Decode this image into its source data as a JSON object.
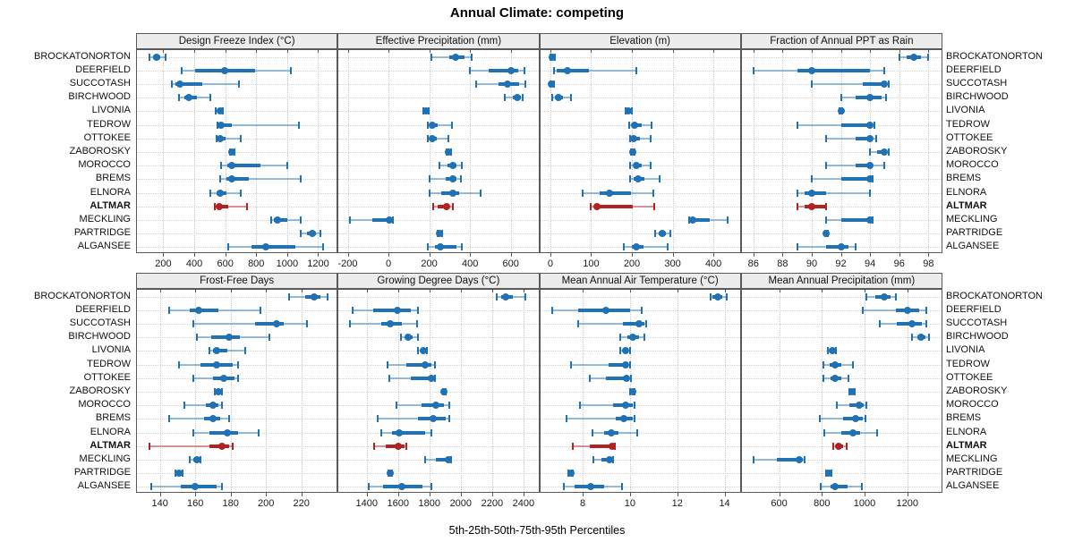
{
  "title": "Annual Climate: competing",
  "caption": "5th-25th-50th-75th-95th Percentiles",
  "percentile_labels": [
    "5th",
    "25th",
    "50th",
    "75th",
    "95th"
  ],
  "locations": [
    "BROCKATONORTON",
    "DEERFIELD",
    "SUCCOTASH",
    "BIRCHWOOD",
    "LIVONIA",
    "TEDROW",
    "OTTOKEE",
    "ZABOROSKY",
    "MOROCCO",
    "BREMS",
    "ELNORA",
    "ALTMAR",
    "MECKLING",
    "PARTRIDGE",
    "ALGANSEE"
  ],
  "highlight_location": "ALTMAR",
  "colors": {
    "series": "#2171B5",
    "series_light": "rgba(33,113,181,0.45)",
    "highlight": "#B22222",
    "highlight_light": "rgba(178,34,34,0.45)",
    "strip_bg": "#ececec",
    "grid": "#c9c9c9",
    "border": "#5a5a5a"
  },
  "chart_data": [
    {
      "type": "interval-dotplot",
      "title": "Design Freeze Index (°C)",
      "xlim": [
        30,
        1320
      ],
      "ticks": [
        200,
        400,
        600,
        800,
        1000,
        1200
      ],
      "values": {
        "BROCKATONORTON": [
          110,
          135,
          155,
          180,
          215
        ],
        "DEERFIELD": [
          320,
          405,
          595,
          790,
          1025
        ],
        "SUCCOTASH": [
          255,
          280,
          305,
          450,
          690
        ],
        "BIRCHWOOD": [
          300,
          335,
          365,
          420,
          505
        ],
        "LIVONIA": [
          540,
          555,
          565,
          575,
          585
        ],
        "TEDROW": [
          550,
          560,
          572,
          640,
          1075
        ],
        "OTTOKEE": [
          545,
          555,
          567,
          605,
          700
        ],
        "ZABOROSKY": [
          630,
          638,
          645,
          652,
          660
        ],
        "MOROCCO": [
          575,
          615,
          645,
          830,
          1000
        ],
        "BREMS": [
          570,
          610,
          640,
          750,
          1090
        ],
        "ELNORA": [
          505,
          545,
          570,
          605,
          700
        ],
        "ALTMAR": [
          535,
          545,
          560,
          620,
          740
        ],
        "MECKLING": [
          895,
          915,
          935,
          1000,
          1085
        ],
        "PARTRIDGE": [
          1090,
          1130,
          1160,
          1185,
          1215
        ],
        "ALGANSEE": [
          620,
          770,
          860,
          1050,
          1230
        ]
      }
    },
    {
      "type": "interval-dotplot",
      "title": "Effective Precipitation (mm)",
      "xlim": [
        -245,
        735
      ],
      "ticks": [
        -200,
        0,
        200,
        400,
        600
      ],
      "values": {
        "BROCKATONORTON": [
          210,
          300,
          330,
          375,
          410
        ],
        "DEERFIELD": [
          400,
          490,
          600,
          635,
          665
        ],
        "SUCCOTASH": [
          430,
          540,
          585,
          640,
          670
        ],
        "BIRCHWOOD": [
          570,
          610,
          633,
          648,
          660
        ],
        "LIVONIA": [
          170,
          178,
          184,
          190,
          196
        ],
        "TEDROW": [
          195,
          205,
          215,
          240,
          310
        ],
        "OTTOKEE": [
          195,
          205,
          215,
          235,
          295
        ],
        "ZABOROSKY": [
          285,
          290,
          295,
          300,
          305
        ],
        "MOROCCO": [
          250,
          290,
          315,
          335,
          360
        ],
        "BREMS": [
          200,
          280,
          315,
          332,
          355
        ],
        "ELNORA": [
          200,
          260,
          315,
          345,
          450
        ],
        "ALTMAR": [
          220,
          240,
          283,
          300,
          315
        ],
        "MECKLING": [
          -190,
          -80,
          5,
          13,
          22
        ],
        "PARTRIDGE": [
          240,
          246,
          252,
          258,
          264
        ],
        "ALGANSEE": [
          195,
          230,
          255,
          335,
          360
        ]
      }
    },
    {
      "type": "interval-dotplot",
      "title": "Elevation (m)",
      "xlim": [
        -25,
        465
      ],
      "ticks": [
        0,
        100,
        200,
        300,
        400
      ],
      "values": {
        "BROCKATONORTON": [
          0,
          2,
          5,
          8,
          12
        ],
        "DEERFIELD": [
          8,
          15,
          42,
          95,
          210
        ],
        "SUCCOTASH": [
          0,
          1,
          3,
          5,
          8
        ],
        "BIRCHWOOD": [
          5,
          12,
          20,
          30,
          50
        ],
        "LIVONIA": [
          185,
          189,
          192,
          195,
          199
        ],
        "TEDROW": [
          193,
          200,
          207,
          225,
          248
        ],
        "OTTOKEE": [
          195,
          200,
          205,
          220,
          245
        ],
        "ZABOROSKY": [
          197,
          200,
          202,
          204,
          207
        ],
        "MOROCCO": [
          196,
          205,
          212,
          225,
          245
        ],
        "BREMS": [
          196,
          205,
          215,
          230,
          268
        ],
        "ELNORA": [
          80,
          120,
          145,
          198,
          253
        ],
        "ALTMAR": [
          98,
          108,
          115,
          203,
          255
        ],
        "MECKLING": [
          340,
          345,
          350,
          390,
          435
        ],
        "PARTRIDGE": [
          258,
          266,
          274,
          284,
          295
        ],
        "ALGANSEE": [
          180,
          200,
          210,
          228,
          288
        ]
      }
    },
    {
      "type": "interval-dotplot",
      "title": "Fraction of Annual PPT as Rain",
      "xlim": [
        85.2,
        98.9
      ],
      "ticks": [
        86,
        88,
        90,
        92,
        94,
        96,
        98
      ],
      "values": {
        "BROCKATONORTON": [
          96,
          96.5,
          97,
          97.5,
          98
        ],
        "DEERFIELD": [
          86,
          89,
          90,
          94,
          95
        ],
        "SUCCOTASH": [
          90,
          93.5,
          95,
          95.1,
          95.3
        ],
        "BIRCHWOOD": [
          92,
          93,
          94,
          94.8,
          95.1
        ],
        "LIVONIA": [
          91.9,
          92,
          92,
          92,
          92.1
        ],
        "TEDROW": [
          89,
          92,
          94,
          94.1,
          94.3
        ],
        "OTTOKEE": [
          91,
          93,
          94,
          94.1,
          94.4
        ],
        "ZABOROSKY": [
          94,
          94.5,
          95,
          95.1,
          95.3
        ],
        "MOROCCO": [
          91,
          93,
          94,
          94.2,
          95
        ],
        "BREMS": [
          90,
          92,
          94,
          94.1,
          94.2
        ],
        "ELNORA": [
          89,
          89.5,
          90,
          91,
          94
        ],
        "ALTMAR": [
          89,
          89.5,
          90,
          90.9,
          91
        ],
        "MECKLING": [
          91,
          92,
          94,
          94.1,
          94.2
        ],
        "PARTRIDGE": [
          90.9,
          91,
          91,
          91,
          91.1
        ],
        "ALGANSEE": [
          89,
          91,
          92,
          92.5,
          93
        ]
      }
    },
    {
      "type": "interval-dotplot",
      "title": "Frost-Free Days",
      "xlim": [
        127,
        240
      ],
      "ticks": [
        140,
        160,
        180,
        200,
        220
      ],
      "values": {
        "BROCKATONORTON": [
          213,
          222,
          227,
          231,
          235
        ],
        "DEERFIELD": [
          145,
          157,
          162,
          173,
          197
        ],
        "SUCCOTASH": [
          159,
          194,
          206,
          210,
          223
        ],
        "BIRCHWOOD": [
          161,
          169,
          179,
          185,
          202
        ],
        "LIVONIA": [
          168,
          170,
          172,
          178,
          188
        ],
        "TEDROW": [
          151,
          163,
          172,
          181,
          184
        ],
        "OTTOKEE": [
          159,
          170,
          176,
          182,
          184
        ],
        "ZABOROSKY": [
          171,
          172,
          173,
          174,
          175
        ],
        "MOROCCO": [
          154,
          166,
          170,
          173,
          175
        ],
        "BREMS": [
          145,
          165,
          170,
          174,
          179
        ],
        "ELNORA": [
          159,
          168,
          178,
          184,
          196
        ],
        "ALTMAR": [
          134,
          168,
          175,
          179,
          181
        ],
        "MECKLING": [
          157,
          159,
          161,
          162,
          163
        ],
        "PARTRIDGE": [
          149,
          150,
          151,
          152,
          153
        ],
        "ALGANSEE": [
          135,
          152,
          160,
          172,
          175
        ]
      }
    },
    {
      "type": "interval-dotplot",
      "title": "Growing Degree Days (°C)",
      "xlim": [
        1220,
        2495
      ],
      "ticks": [
        1400,
        1600,
        1800,
        2000,
        2200,
        2400
      ],
      "values": {
        "BROCKATONORTON": [
          2230,
          2260,
          2285,
          2330,
          2410
        ],
        "DEERFIELD": [
          1310,
          1440,
          1595,
          1680,
          1725
        ],
        "SUCCOTASH": [
          1290,
          1495,
          1550,
          1625,
          1720
        ],
        "BIRCHWOOD": [
          1620,
          1645,
          1665,
          1690,
          1725
        ],
        "LIVONIA": [
          1725,
          1745,
          1762,
          1775,
          1785
        ],
        "TEDROW": [
          1535,
          1650,
          1775,
          1810,
          1835
        ],
        "OTTOKEE": [
          1545,
          1680,
          1813,
          1825,
          1836
        ],
        "ZABOROSKY": [
          1885,
          1890,
          1895,
          1900,
          1905
        ],
        "MOROCCO": [
          1590,
          1750,
          1840,
          1890,
          1925
        ],
        "BREMS": [
          1470,
          1725,
          1825,
          1905,
          1925
        ],
        "ELNORA": [
          1490,
          1560,
          1607,
          1770,
          1810
        ],
        "ALTMAR": [
          1447,
          1520,
          1604,
          1640,
          1650
        ],
        "MECKLING": [
          1775,
          1840,
          1920,
          1930,
          1936
        ],
        "PARTRIDGE": [
          1540,
          1546,
          1552,
          1558,
          1564
        ],
        "ALGANSEE": [
          1415,
          1505,
          1625,
          1755,
          1815
        ]
      }
    },
    {
      "type": "interval-dotplot",
      "title": "Mean Annual Air Temperature (°C)",
      "xlim": [
        6.2,
        14.65
      ],
      "ticks": [
        8,
        10,
        12,
        14
      ],
      "values": {
        "BROCKATONORTON": [
          13.4,
          13.5,
          13.7,
          13.9,
          14.1
        ],
        "DEERFIELD": [
          6.7,
          7.8,
          9.0,
          10.0,
          10.5
        ],
        "SUCCOTASH": [
          7.8,
          9.7,
          10.4,
          10.6,
          10.7
        ],
        "BIRCHWOOD": [
          9.6,
          9.9,
          10.1,
          10.4,
          10.6
        ],
        "LIVONIA": [
          9.6,
          9.7,
          9.8,
          9.9,
          10.0
        ],
        "TEDROW": [
          7.5,
          9.1,
          9.8,
          9.9,
          10.0
        ],
        "OTTOKEE": [
          8.3,
          9.0,
          9.85,
          9.95,
          10.05
        ],
        "ZABOROSKY": [
          10.0,
          10.05,
          10.1,
          10.15,
          10.2
        ],
        "MOROCCO": [
          7.9,
          9.3,
          9.8,
          10.1,
          10.2
        ],
        "BREMS": [
          7.3,
          9.4,
          9.75,
          10.1,
          10.2
        ],
        "ELNORA": [
          8.4,
          8.9,
          9.2,
          9.5,
          10.3
        ],
        "ALTMAR": [
          7.6,
          8.3,
          9.25,
          9.3,
          9.35
        ],
        "MECKLING": [
          8.45,
          8.8,
          9.15,
          9.25,
          9.3
        ],
        "PARTRIDGE": [
          7.4,
          7.45,
          7.5,
          7.55,
          7.6
        ],
        "ALGANSEE": [
          7.2,
          7.65,
          8.35,
          8.9,
          9.65
        ]
      }
    },
    {
      "type": "interval-dotplot",
      "title": "Mean Annual Precipitation (mm)",
      "xlim": [
        425,
        1360
      ],
      "ticks": [
        600,
        800,
        1000,
        1200
      ],
      "values": {
        "BROCKATONORTON": [
          1010,
          1050,
          1093,
          1120,
          1145
        ],
        "DEERFIELD": [
          990,
          1145,
          1200,
          1255,
          1290
        ],
        "SUCCOTASH": [
          1070,
          1150,
          1220,
          1270,
          1290
        ],
        "BIRCHWOOD": [
          1220,
          1245,
          1265,
          1285,
          1302
        ],
        "LIVONIA": [
          830,
          840,
          848,
          858,
          866
        ],
        "TEDROW": [
          807,
          835,
          860,
          890,
          945
        ],
        "OTTOKEE": [
          807,
          840,
          862,
          890,
          925
        ],
        "ZABOROSKY": [
          930,
          936,
          941,
          947,
          953
        ],
        "MOROCCO": [
          870,
          930,
          975,
          995,
          1010
        ],
        "BREMS": [
          790,
          900,
          960,
          990,
          1005
        ],
        "ELNORA": [
          813,
          890,
          945,
          980,
          1060
        ],
        "ALTMAR": [
          853,
          865,
          880,
          900,
          918
        ],
        "MECKLING": [
          480,
          590,
          695,
          710,
          718
        ],
        "PARTRIDGE": [
          820,
          826,
          832,
          838,
          845
        ],
        "ALGANSEE": [
          793,
          840,
          862,
          920,
          988
        ]
      }
    }
  ]
}
